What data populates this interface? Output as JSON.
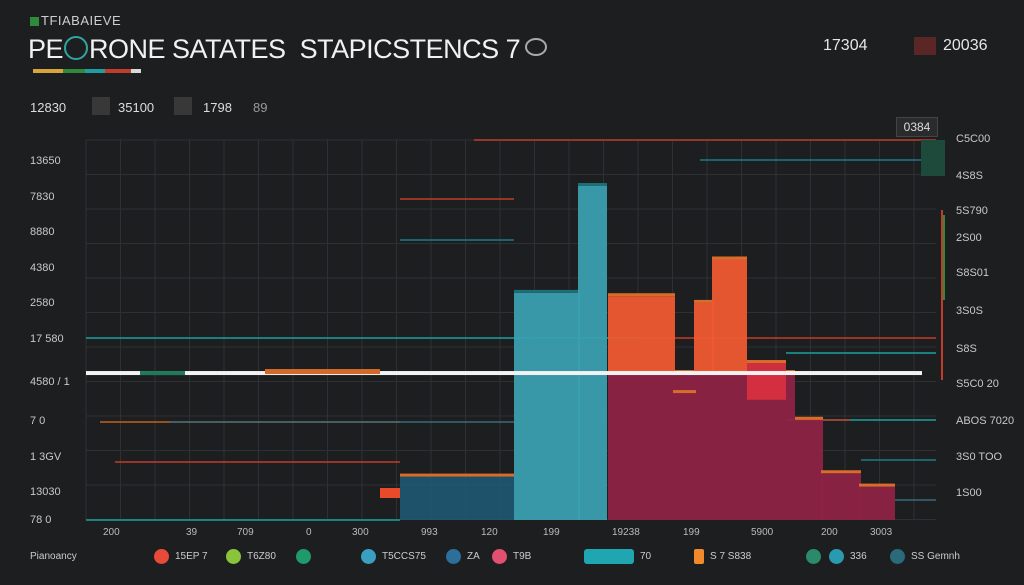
{
  "header": {
    "subtitle": "TFIABAIEVE",
    "title_a": "PE",
    "title_b": "RONE",
    "title_c": " SATATES",
    "title_d": "STAPICSTENCS 7",
    "small_note": "",
    "stats": [
      {
        "label": "",
        "value": "17304"
      },
      {
        "label": "",
        "value": "20036"
      }
    ],
    "accent_colors": [
      "#d9a53a",
      "#2f8a3c",
      "#1d9fa0",
      "#c23b2b",
      "#d9d9d9"
    ]
  },
  "subheader": {
    "left_value": "12830",
    "items": [
      {
        "value": "35100"
      },
      {
        "value": "1798"
      },
      {
        "value": "89"
      }
    ]
  },
  "corner_value": "0384",
  "axes": {
    "left_labels": [
      "13650",
      "7830",
      "8880",
      "4380",
      "2580",
      "17 580",
      "4580 / 1",
      "7 0",
      "1 3GV",
      "13030",
      "78 0"
    ],
    "right_labels": [
      "C5C00",
      "4S8S",
      "5S790",
      "2S00",
      "S8S01",
      "3S0S",
      "S8S",
      "S5C0 20",
      "ABOS 7020",
      "3S0 TOO",
      "1S00"
    ],
    "x_labels": [
      "200",
      "39",
      "709",
      "0",
      "300",
      "993",
      "120",
      "199",
      "19238",
      "199",
      "5900",
      "200",
      "3003"
    ]
  },
  "chart_data": {
    "type": "bar",
    "title": "PERONE SATATES STAPICSTENCS 7",
    "xlabel": "",
    "ylabel": "",
    "ylim": [
      0,
      100
    ],
    "grid": true,
    "legend_position": "bottom",
    "series": [
      {
        "name": "",
        "color": "#3a9fb0",
        "values": [
          {
            "x0": 514,
            "x1": 580,
            "top": 68,
            "base": 0
          },
          {
            "x0": 578,
            "x1": 607,
            "top": 100,
            "base": 0
          }
        ]
      },
      {
        "name": "",
        "color": "#ee5a30",
        "values": [
          {
            "x0": 608,
            "x1": 675,
            "top": 67,
            "base": 44
          },
          {
            "x0": 673,
            "x1": 696,
            "top": 38,
            "base": 44
          },
          {
            "x0": 694,
            "x1": 714,
            "top": 65,
            "base": 44
          },
          {
            "x0": 712,
            "x1": 747,
            "top": 78,
            "base": 44
          }
        ]
      },
      {
        "name": "",
        "color": "#d83040",
        "values": [
          {
            "x0": 747,
            "x1": 786,
            "top": 47,
            "base": 36
          }
        ]
      },
      {
        "name": "",
        "color": "#8e2346",
        "values": [
          {
            "x0": 608,
            "x1": 795,
            "top": 44,
            "base": 0
          },
          {
            "x0": 795,
            "x1": 823,
            "top": 30,
            "base": 0
          },
          {
            "x0": 821,
            "x1": 861,
            "top": 14,
            "base": 0
          },
          {
            "x0": 859,
            "x1": 895,
            "top": 10,
            "base": 0
          }
        ]
      },
      {
        "name": "",
        "color": "#1f5c78",
        "values": [
          {
            "x0": 400,
            "x1": 514,
            "top": 13,
            "base": 0
          }
        ]
      }
    ],
    "threshold_line": 44
  },
  "legend": [
    {
      "label": "Pianoancy",
      "color": "#1d1e20"
    },
    {
      "label": "15EP 7",
      "color": "#e84a3a"
    },
    {
      "label": "T6Z80",
      "color": "#8ac43c"
    },
    {
      "label": "",
      "color": "#1f9a6a"
    },
    {
      "label": "T5CCS75",
      "color": "#3aa0c0"
    },
    {
      "label": "ZA",
      "color": "#2b6f9a"
    },
    {
      "label": "T9B",
      "color": "#e05070"
    },
    {
      "label": "70",
      "color": "#1fa6b0"
    },
    {
      "label": "S 7 S838",
      "color": "#f08a2a"
    },
    {
      "label": "",
      "color": "#2a8a6a"
    },
    {
      "label": "336",
      "color": "#2a9ab0"
    },
    {
      "label": "SS Gemnh",
      "color": "#2a6a7a"
    }
  ]
}
